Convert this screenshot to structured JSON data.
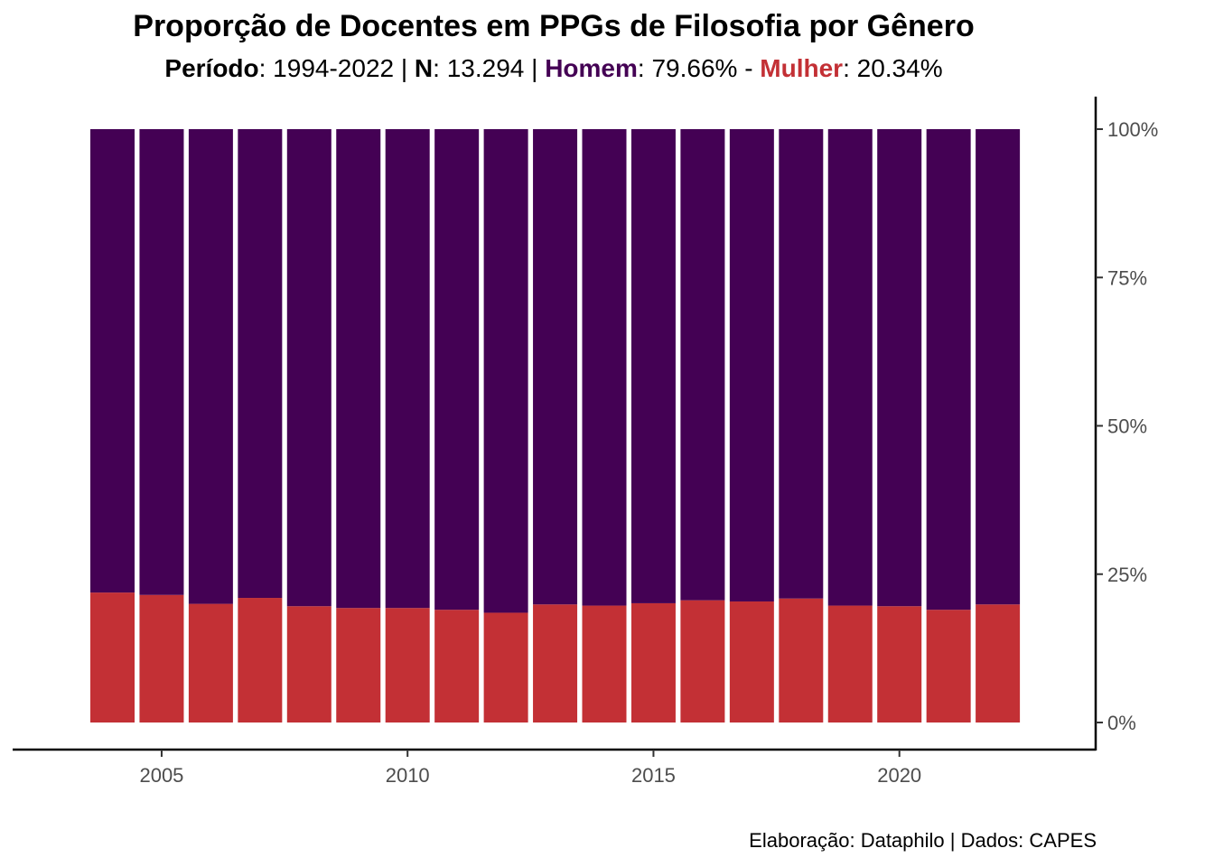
{
  "title": "Proporção de Docentes em PPGs de Filosofia por Gênero",
  "subtitle": {
    "periodo_label": "Período",
    "periodo_value": ": 1994-2022 | ",
    "n_label": "N",
    "n_value": ": 13.294 | ",
    "homem_label": "Homem",
    "homem_value": ": 79.66% - ",
    "mulher_label": "Mulher",
    "mulher_value": ": 20.34%"
  },
  "caption": "Elaboração: Dataphilo | Dados: CAPES",
  "colors": {
    "homem": "#440154",
    "mulher": "#c33035"
  },
  "chart_data": {
    "type": "bar",
    "stacked": true,
    "normalized": true,
    "x": [
      2004,
      2005,
      2006,
      2007,
      2008,
      2009,
      2010,
      2011,
      2012,
      2013,
      2014,
      2015,
      2016,
      2017,
      2018,
      2019,
      2020,
      2021,
      2022
    ],
    "series": [
      {
        "name": "Mulher",
        "values": [
          21.9,
          21.5,
          20.0,
          21.0,
          19.6,
          19.3,
          19.3,
          19.0,
          18.5,
          19.9,
          19.7,
          20.1,
          20.6,
          20.4,
          20.9,
          19.7,
          19.6,
          19.0,
          19.9
        ]
      },
      {
        "name": "Homem",
        "values": [
          78.1,
          78.5,
          80.0,
          79.0,
          80.4,
          80.7,
          80.7,
          81.0,
          81.5,
          80.1,
          80.3,
          79.9,
          79.4,
          79.6,
          79.1,
          80.3,
          80.4,
          81.0,
          80.1
        ]
      }
    ],
    "x_ticks": [
      "2005",
      "2010",
      "2015",
      "2020"
    ],
    "y_ticks": [
      "0%",
      "25%",
      "50%",
      "75%",
      "100%"
    ],
    "ylim": [
      0,
      100
    ],
    "y_axis_position": "right",
    "grid": false
  }
}
